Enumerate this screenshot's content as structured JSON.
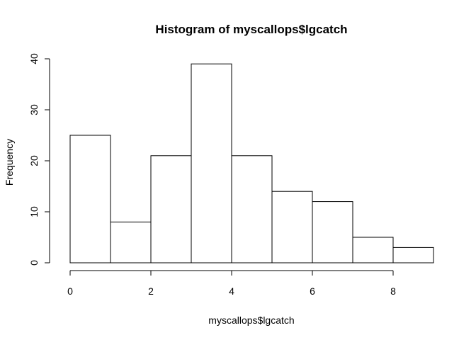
{
  "chart_data": {
    "type": "bar",
    "title": "Histogram of myscallops$lgcatch",
    "xlabel": "myscallops$lgcatch",
    "ylabel": "Frequency",
    "bins": [
      {
        "x0": 0,
        "x1": 1,
        "count": 25
      },
      {
        "x0": 1,
        "x1": 2,
        "count": 8
      },
      {
        "x0": 2,
        "x1": 3,
        "count": 21
      },
      {
        "x0": 3,
        "x1": 4,
        "count": 39
      },
      {
        "x0": 4,
        "x1": 5,
        "count": 21
      },
      {
        "x0": 5,
        "x1": 6,
        "count": 14
      },
      {
        "x0": 6,
        "x1": 7,
        "count": 12
      },
      {
        "x0": 7,
        "x1": 8,
        "count": 5
      },
      {
        "x0": 8,
        "x1": 9,
        "count": 3
      }
    ],
    "xlim": [
      0,
      9
    ],
    "ylim": [
      0,
      40
    ],
    "x_ticks": [
      0,
      2,
      4,
      6,
      8
    ],
    "y_ticks": [
      0,
      10,
      20,
      30,
      40
    ],
    "grid": false,
    "legend": "none",
    "bar_fill": "#ffffff",
    "bar_stroke": "#000000"
  }
}
